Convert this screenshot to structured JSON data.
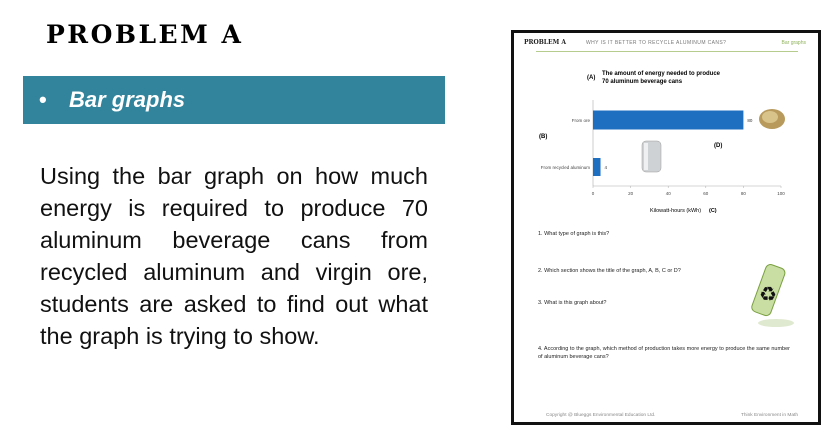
{
  "slide": {
    "title": "PROBLEM A",
    "bullet": "Bar graphs",
    "paragraph": "Using the bar graph on how much energy is required to produce 70 aluminum beverage cans from recycled aluminum and virgin ore, students are asked to find out what the graph is trying to show.",
    "band_color": "#31849b"
  },
  "worksheet": {
    "header_left": "PROBLEM A",
    "header_center": "WHY IS IT BETTER TO RECYCLE ALUMINUM CANS?",
    "header_right": "Bar graphs",
    "label_a": "(A)",
    "label_b": "(B)",
    "label_c": "(C)",
    "label_d": "(D)",
    "questions": [
      "1. What type of graph is this?",
      "2. Which section shows the title of the graph, A, B, C or D?",
      "3. What is this graph about?",
      "4. According to the graph, which method of production takes more energy to produce the same number of aluminum beverage cans?"
    ],
    "footer_left": "Copyright @ Blueggs Environmental Education Ltd.",
    "footer_right": "Think Environment in Math"
  },
  "chart_data": {
    "type": "bar",
    "orientation": "horizontal",
    "title": "The amount of energy needed to produce 70 aluminum beverage cans",
    "categories": [
      "From ore",
      "From recycled aluminum"
    ],
    "values": [
      80,
      4
    ],
    "xlabel": "Kilowatt-hours (kWh)",
    "xlim": [
      0,
      100
    ],
    "xticks": [
      "0",
      "20",
      "40",
      "60",
      "80",
      "100"
    ],
    "bar_color": "#1f6fc0",
    "grid": false
  }
}
